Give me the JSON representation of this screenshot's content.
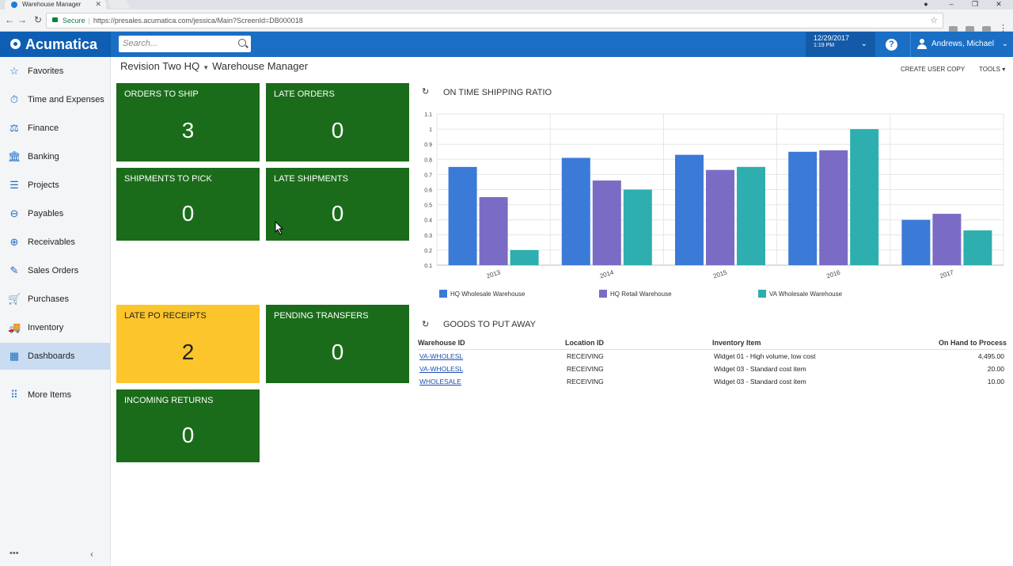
{
  "browser": {
    "tab_title": "Warehouse Manager",
    "url_secure": "Secure",
    "url": "https://presales.acumatica.com/jessica/Main?ScreenId=DB000018"
  },
  "header": {
    "brand": "Acumatica",
    "search_placeholder": "Search...",
    "date": "12/29/2017",
    "time": "1:19 PM",
    "help": "?",
    "user": "Andrews, Michael"
  },
  "sidebar": {
    "items": [
      {
        "label": "Favorites",
        "icon": "star-icon"
      },
      {
        "label": "Time and Expenses",
        "icon": "stopwatch-icon"
      },
      {
        "label": "Finance",
        "icon": "scales-icon"
      },
      {
        "label": "Banking",
        "icon": "bank-icon"
      },
      {
        "label": "Projects",
        "icon": "projects-icon"
      },
      {
        "label": "Payables",
        "icon": "minus-circle-icon"
      },
      {
        "label": "Receivables",
        "icon": "plus-circle-icon"
      },
      {
        "label": "Sales Orders",
        "icon": "edit-icon"
      },
      {
        "label": "Purchases",
        "icon": "cart-icon"
      },
      {
        "label": "Inventory",
        "icon": "truck-icon"
      },
      {
        "label": "Dashboards",
        "icon": "dashboard-icon"
      },
      {
        "label": "More Items",
        "icon": "grid-icon"
      }
    ],
    "active": "Dashboards"
  },
  "page": {
    "company": "Revision Two HQ",
    "title": "Warehouse Manager",
    "create_copy": "CREATE USER COPY",
    "tools": "TOOLS"
  },
  "tiles": [
    {
      "label": "ORDERS TO SHIP",
      "value": "3",
      "color": "#1a6c1a"
    },
    {
      "label": "LATE ORDERS",
      "value": "0",
      "color": "#1a6c1a"
    },
    {
      "label": "SHIPMENTS TO PICK",
      "value": "0",
      "color": "#1a6c1a"
    },
    {
      "label": "LATE SHIPMENTS",
      "value": "0",
      "color": "#1a6c1a"
    },
    {
      "label": "LATE PO RECEIPTS",
      "value": "2",
      "color": "#fcc52b"
    },
    {
      "label": "PENDING TRANSFERS",
      "value": "0",
      "color": "#1a6c1a"
    },
    {
      "label": "INCOMING RETURNS",
      "value": "0",
      "color": "#1a6c1a"
    }
  ],
  "chart_title": "ON TIME SHIPPING RATIO",
  "chart_data": {
    "type": "bar",
    "categories": [
      "2013",
      "2014",
      "2015",
      "2016",
      "2017"
    ],
    "series": [
      {
        "name": "HQ Wholesale Warehouse",
        "color": "#3b7ad6",
        "values": [
          0.75,
          0.81,
          0.83,
          0.85,
          0.4
        ]
      },
      {
        "name": "HQ Retail Warehouse",
        "color": "#7a6cc4",
        "values": [
          0.55,
          0.66,
          0.73,
          0.86,
          0.44
        ]
      },
      {
        "name": "VA Wholesale Warehouse",
        "color": "#2eaeae",
        "values": [
          0.2,
          0.6,
          0.75,
          1.0,
          0.33
        ]
      }
    ],
    "yticks": [
      "0.1",
      "0.2",
      "0.3",
      "0.4",
      "0.5",
      "0.6",
      "0.7",
      "0.8",
      "0.9",
      "1",
      "1.1"
    ],
    "ylim": [
      0.1,
      1.1
    ],
    "grid": true,
    "legend": "bottom"
  },
  "goods": {
    "title": "GOODS TO PUT AWAY",
    "columns": [
      "Warehouse ID",
      "Location ID",
      "Inventory Item",
      "On Hand to Process"
    ],
    "rows": [
      {
        "warehouse": "VA-WHOLESL",
        "location": "RECEIVING",
        "item": "Widget 01 - High volume, low cost",
        "qty": "4,495.00"
      },
      {
        "warehouse": "VA-WHOLESL",
        "location": "RECEIVING",
        "item": "Widget 03 - Standard cost item",
        "qty": "20.00"
      },
      {
        "warehouse": "WHOLESALE",
        "location": "RECEIVING",
        "item": "Widget 03 - Standard cost item",
        "qty": "10.00"
      }
    ]
  }
}
